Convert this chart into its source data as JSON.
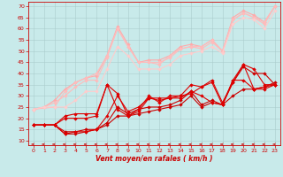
{
  "xlabel": "Vent moyen/en rafales ( km/h )",
  "bg_color": "#c8eaea",
  "grid_color": "#aacccc",
  "xlim": [
    -0.5,
    23.5
  ],
  "ylim": [
    8,
    72
  ],
  "yticks": [
    10,
    15,
    20,
    25,
    30,
    35,
    40,
    45,
    50,
    55,
    60,
    65,
    70
  ],
  "xticks": [
    0,
    1,
    2,
    3,
    4,
    5,
    6,
    7,
    8,
    9,
    10,
    11,
    12,
    13,
    14,
    15,
    16,
    17,
    18,
    19,
    20,
    21,
    22,
    23
  ],
  "lines_light": [
    {
      "x": [
        0,
        1,
        2,
        3,
        4,
        5,
        6,
        7,
        8,
        9,
        10,
        11,
        12,
        13,
        14,
        15,
        16,
        17,
        18,
        19,
        20,
        21,
        22,
        23
      ],
      "y": [
        24,
        25,
        28,
        33,
        36,
        38,
        39,
        48,
        61,
        53,
        45,
        46,
        46,
        48,
        52,
        53,
        52,
        55,
        50,
        65,
        68,
        66,
        63,
        70
      ],
      "color": "#ffaaaa"
    },
    {
      "x": [
        0,
        1,
        2,
        3,
        4,
        5,
        6,
        7,
        8,
        9,
        10,
        11,
        12,
        13,
        14,
        15,
        16,
        17,
        18,
        19,
        20,
        21,
        22,
        23
      ],
      "y": [
        24,
        25,
        27,
        30,
        34,
        37,
        37,
        47,
        60,
        52,
        45,
        45,
        45,
        47,
        51,
        52,
        51,
        54,
        50,
        64,
        67,
        65,
        62,
        70
      ],
      "color": "#ffbbbb"
    },
    {
      "x": [
        0,
        2,
        3,
        4,
        5,
        6,
        7,
        8,
        9,
        10,
        11,
        12,
        13,
        14,
        15,
        16,
        17,
        18,
        19,
        20,
        21,
        22,
        23
      ],
      "y": [
        24,
        25,
        32,
        36,
        38,
        40,
        48,
        60,
        52,
        45,
        45,
        44,
        48,
        51,
        52,
        52,
        55,
        50,
        64,
        67,
        65,
        63,
        70
      ],
      "color": "#ffbbbb"
    },
    {
      "x": [
        0,
        1,
        2,
        3,
        4,
        5,
        6,
        7,
        8,
        9,
        10,
        11,
        12,
        13,
        14,
        15,
        16,
        17,
        18,
        19,
        20,
        21,
        22,
        23
      ],
      "y": [
        24,
        25,
        25,
        25,
        28,
        32,
        32,
        42,
        52,
        48,
        42,
        42,
        42,
        44,
        48,
        49,
        50,
        52,
        49,
        62,
        65,
        64,
        60,
        68
      ],
      "color": "#ffcccc"
    }
  ],
  "lines_dark": [
    {
      "x": [
        0,
        1,
        2,
        3,
        4,
        5,
        6,
        7,
        8,
        9,
        10,
        11,
        12,
        13,
        14,
        15,
        16,
        17,
        18,
        19,
        20,
        21,
        22,
        23
      ],
      "y": [
        17,
        17,
        17,
        13,
        13,
        14,
        15,
        18,
        25,
        22,
        24,
        25,
        25,
        26,
        28,
        32,
        26,
        28,
        26,
        36,
        43,
        40,
        40,
        35
      ],
      "color": "#cc0000"
    },
    {
      "x": [
        0,
        1,
        2,
        3,
        4,
        5,
        6,
        7,
        8,
        9,
        10,
        11,
        12,
        13,
        14,
        15,
        16,
        17,
        18,
        19,
        20,
        21,
        22,
        23
      ],
      "y": [
        17,
        17,
        17,
        14,
        14,
        15,
        15,
        17,
        21,
        21,
        22,
        23,
        24,
        25,
        26,
        30,
        25,
        27,
        26,
        30,
        33,
        33,
        34,
        36
      ],
      "color": "#cc0000"
    },
    {
      "x": [
        0,
        1,
        2,
        3,
        4,
        5,
        6,
        7,
        8,
        9,
        10,
        11,
        12,
        13,
        14,
        15,
        16,
        17,
        18,
        19,
        20,
        21,
        22,
        23
      ],
      "y": [
        17,
        17,
        17,
        13,
        14,
        14,
        15,
        21,
        30,
        23,
        25,
        29,
        29,
        29,
        29,
        32,
        30,
        27,
        26,
        37,
        37,
        33,
        33,
        35
      ],
      "color": "#dd0000"
    },
    {
      "x": [
        0,
        1,
        2,
        3,
        4,
        5,
        6,
        7,
        8,
        9,
        10,
        11,
        12,
        13,
        14,
        15,
        16,
        17,
        18,
        19,
        20,
        21,
        22,
        23
      ],
      "y": [
        17,
        17,
        17,
        20,
        20,
        20,
        21,
        35,
        31,
        21,
        23,
        29,
        28,
        29,
        30,
        35,
        34,
        36,
        26,
        37,
        44,
        33,
        34,
        35
      ],
      "color": "#dd0000"
    },
    {
      "x": [
        0,
        1,
        2,
        3,
        4,
        5,
        6,
        7,
        8,
        9,
        10,
        11,
        12,
        13,
        14,
        15,
        16,
        17,
        18,
        19,
        20,
        21,
        22,
        23
      ],
      "y": [
        17,
        17,
        17,
        21,
        22,
        22,
        22,
        35,
        24,
        21,
        24,
        30,
        27,
        30,
        30,
        31,
        34,
        37,
        27,
        36,
        44,
        42,
        35,
        35
      ],
      "color": "#dd0000"
    }
  ]
}
